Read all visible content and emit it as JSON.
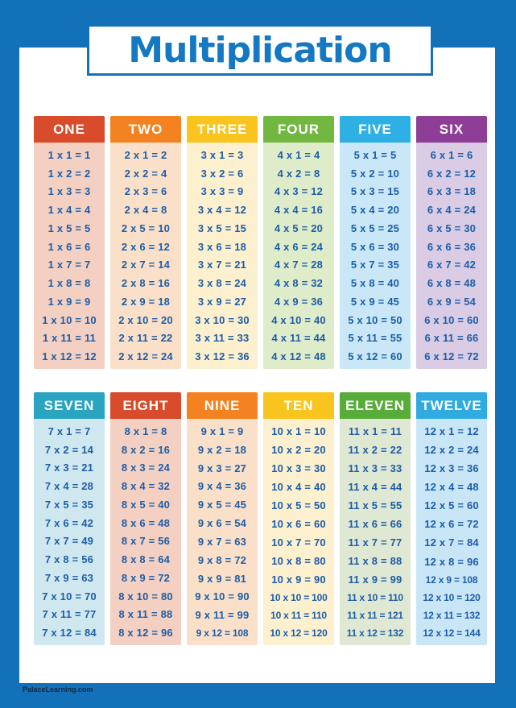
{
  "poster": {
    "title": "Multiplication",
    "footer": "PalaceLearning.com"
  },
  "colors": {
    "frame_blue": "#1271b8",
    "title_blue": "#1478c2",
    "equation_blue": "#1d5da7",
    "header_text": "#ffffff",
    "footer_text": "#14293f"
  },
  "groups": [
    {
      "columns": [
        {
          "label": "ONE",
          "header_color": "#d84b2b",
          "body_color": "#f3d0c2",
          "equations": [
            "1 x 1 = 1",
            "1 x 2 = 2",
            "1 x 3 = 3",
            "1 x 4 = 4",
            "1 x 5 = 5",
            "1 x 6 = 6",
            "1 x 7 = 7",
            "1 x 8 = 8",
            "1 x 9 = 9",
            "1 x 10 = 10",
            "1 x 11 = 11",
            "1 x 12 = 12"
          ]
        },
        {
          "label": "TWO",
          "header_color": "#f58220",
          "body_color": "#fae0c8",
          "equations": [
            "2 x 1 = 2",
            "2 x 2 = 4",
            "2 x 3 = 6",
            "2 x 4 = 8",
            "2 x 5 = 10",
            "2 x 6 = 12",
            "2 x 7 = 14",
            "2 x 8 = 16",
            "2 x 9 = 18",
            "2 x 10 = 20",
            "2 x 11 = 22",
            "2 x 12 = 24"
          ]
        },
        {
          "label": "THREE",
          "header_color": "#f8c41d",
          "body_color": "#fcf0cf",
          "equations": [
            "3 x 1 = 3",
            "3 x 2 = 6",
            "3 x 3 = 9",
            "3 x 4 = 12",
            "3 x 5 = 15",
            "3 x 6 = 18",
            "3 x 7 = 21",
            "3 x 8 = 24",
            "3 x 9 = 27",
            "3 x 10 = 30",
            "3 x 11 = 33",
            "3 x 12 = 36"
          ]
        },
        {
          "label": "FOUR",
          "header_color": "#72b73f",
          "body_color": "#dfecca",
          "equations": [
            "4 x 1 = 4",
            "4 x 2 = 8",
            "4 x 3 = 12",
            "4 x 4 = 16",
            "4 x 5 = 20",
            "4 x 6 = 24",
            "4 x 7 = 28",
            "4 x 8 = 32",
            "4 x 9 = 36",
            "4 x 10 = 40",
            "4 x 11 = 44",
            "4 x 12 = 48"
          ]
        },
        {
          "label": "FIVE",
          "header_color": "#2fb0e4",
          "body_color": "#c9e7f6",
          "equations": [
            "5 x 1 = 5",
            "5 x 2 = 10",
            "5 x 3 = 15",
            "5 x 4 = 20",
            "5 x 5 = 25",
            "5 x 6 = 30",
            "5 x 7 = 35",
            "5 x 8 = 40",
            "5 x 9 = 45",
            "5 x 10 = 50",
            "5 x 11 = 55",
            "5 x 12 = 60"
          ]
        },
        {
          "label": "SIX",
          "header_color": "#8e3e97",
          "body_color": "#d9cce4",
          "equations": [
            "6 x 1 = 6",
            "6 x 2 = 12",
            "6 x 3 = 18",
            "6 x 4 = 24",
            "6 x 5 = 30",
            "6 x 6 = 36",
            "6 x 7 = 42",
            "6 x 8 = 48",
            "6 x 9 = 54",
            "6 x 10 = 60",
            "6 x 11 = 66",
            "6 x 12 = 72"
          ]
        }
      ]
    },
    {
      "columns": [
        {
          "label": "SEVEN",
          "header_color": "#2aa4c0",
          "body_color": "#cfe8f0",
          "equations": [
            "7 x 1 = 7",
            "7 x 2 = 14",
            "7 x 3 = 21",
            "7 x 4 = 28",
            "7 x 5 = 35",
            "7 x 6 = 42",
            "7 x 7 = 49",
            "7 x 8 = 56",
            "7 x 9 = 63",
            "7 x 10 = 70",
            "7 x 11 = 77",
            "7 x 12 = 84"
          ]
        },
        {
          "label": "EIGHT",
          "header_color": "#d84b2b",
          "body_color": "#f3d0c2",
          "equations": [
            "8 x 1 = 8",
            "8 x 2 = 16",
            "8 x 3 = 24",
            "8 x 4 = 32",
            "8 x 5 = 40",
            "8 x 6 = 48",
            "8 x 7 = 56",
            "8 x 8 = 64",
            "8 x 9 = 72",
            "8 x 10 = 80",
            "8 x 11 = 88",
            "8 x 12 = 96"
          ]
        },
        {
          "label": "NINE",
          "header_color": "#f58220",
          "body_color": "#fae0c8",
          "equations": [
            "9 x 1 = 9",
            "9 x 2 = 18",
            "9 x 3 = 27",
            "9 x 4 = 36",
            "9 x 5 = 45",
            "9 x 6 = 54",
            "9 x 7 = 63",
            "9 x 8 = 72",
            "9 x 9 = 81",
            "9 x 10 = 90",
            "9 x 11 = 99",
            "9 x 12 = 108"
          ]
        },
        {
          "label": "TEN",
          "header_color": "#f8c41d",
          "body_color": "#fcf0cf",
          "equations": [
            "10 x 1 = 10",
            "10 x 2 = 20",
            "10 x 3 = 30",
            "10 x 4 = 40",
            "10 x 5 = 50",
            "10 x 6 = 60",
            "10 x 7 = 70",
            "10 x 8 = 80",
            "10 x 9 = 90",
            "10 x 10 = 100",
            "10 x 11 = 110",
            "10 x 12 = 120"
          ]
        },
        {
          "label": "ELEVEN",
          "header_color": "#58ad3a",
          "body_color": "#dfe8d2",
          "equations": [
            "11 x 1 = 11",
            "11 x 2 = 22",
            "11 x 3 = 33",
            "11 x 4 = 44",
            "11 x 5 = 55",
            "11 x 6 = 66",
            "11 x 7 = 77",
            "11 x 8 = 88",
            "11 x 9 = 99",
            "11 x 10 = 110",
            "11 x 11 = 121",
            "11 x 12 = 132"
          ]
        },
        {
          "label": "TWELVE",
          "header_color": "#2fabe1",
          "body_color": "#c9e6f7",
          "equations": [
            "12 x 1 = 12",
            "12 x 2 = 24",
            "12 x 3 = 36",
            "12 x 4 = 48",
            "12 x 5 = 60",
            "12 x 6 = 72",
            "12 x 7 = 84",
            "12 x 8 = 96",
            "12 x 9 = 108",
            "12 x 10 = 120",
            "12 x 11 = 132",
            "12 x 12 = 144"
          ]
        }
      ]
    }
  ]
}
